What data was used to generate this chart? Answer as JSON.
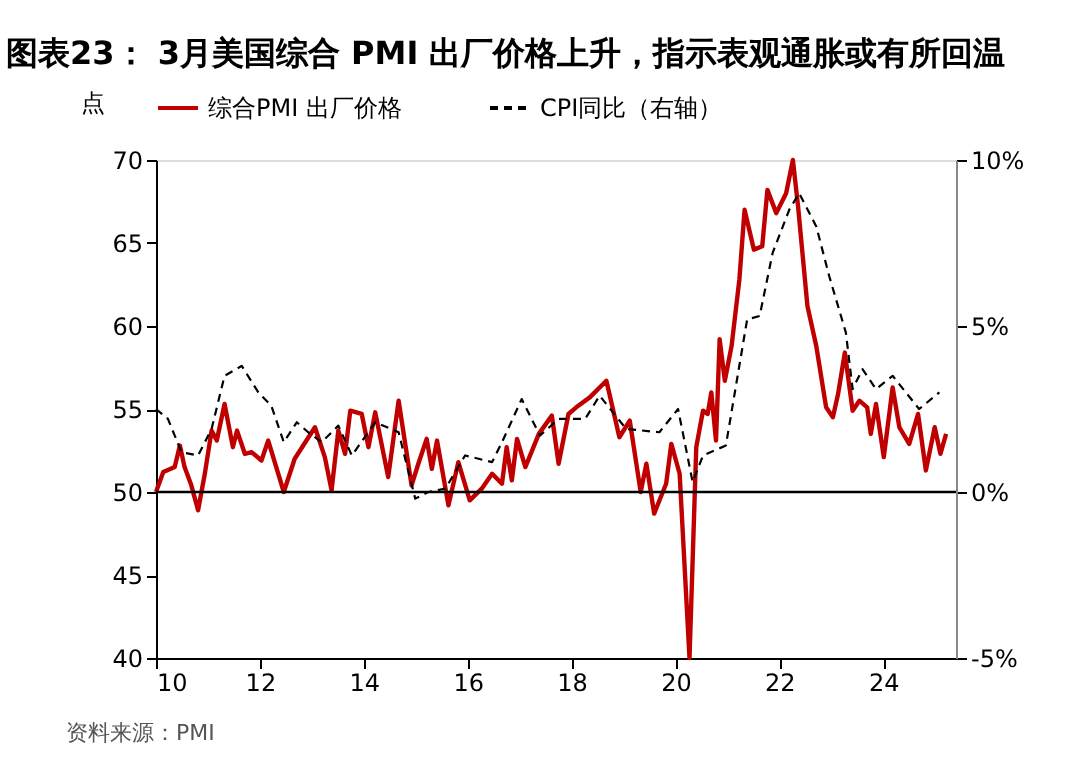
{
  "chart_data": {
    "type": "line",
    "title": "图表23： 3月美国综合 PMI 出厂价格上升，指示表观通胀或有所回温",
    "ylabel": "点",
    "xlim": [
      10,
      25.4
    ],
    "xticks": [
      10,
      12,
      14,
      16,
      18,
      20,
      22,
      24
    ],
    "ylim": [
      40,
      70
    ],
    "yticks": [
      40,
      45,
      50,
      55,
      60,
      65,
      70
    ],
    "y2lim": [
      -5,
      10
    ],
    "y2ticks": [
      {
        "value": -5,
        "label": "-5%"
      },
      {
        "value": 0,
        "label": "0%"
      },
      {
        "value": 5,
        "label": "5%"
      },
      {
        "value": 10,
        "label": "10%"
      }
    ],
    "grid": false,
    "legend": "top",
    "marker": "none",
    "ref_lines": [
      {
        "axis": "y",
        "value": 50,
        "color": "#000000"
      }
    ],
    "annotations": [
      "资料来源：PMI"
    ],
    "series": [
      {
        "name": "综合PMI 出厂价格",
        "color": "#c00000",
        "line_style": "solid",
        "x": [
          10.0,
          10.14,
          10.36,
          10.46,
          10.55,
          10.68,
          10.81,
          10.94,
          11.07,
          11.17,
          11.32,
          11.48,
          11.56,
          11.71,
          11.84,
          12.03,
          12.16,
          12.46,
          12.67,
          13.06,
          13.25,
          13.38,
          13.51,
          13.64,
          13.74,
          13.96,
          14.09,
          14.22,
          14.47,
          14.67,
          14.92,
          15.05,
          15.21,
          15.31,
          15.41,
          15.63,
          15.82,
          16.04,
          16.27,
          16.47,
          16.66,
          16.75,
          16.85,
          16.95,
          17.11,
          17.37,
          17.62,
          17.75,
          17.94,
          18.09,
          18.35,
          18.67,
          18.92,
          19.12,
          19.33,
          19.44,
          19.59,
          19.82,
          19.92,
          20.08,
          20.27,
          20.4,
          20.53,
          20.62,
          20.69,
          20.78,
          20.85,
          20.95,
          21.08,
          21.23,
          21.33,
          21.51,
          21.67,
          21.77,
          21.94,
          22.13,
          22.26,
          22.36,
          22.54,
          22.71,
          22.9,
          23.03,
          23.13,
          23.26,
          23.41,
          23.54,
          23.69,
          23.76,
          23.86,
          24.01,
          24.18,
          24.31,
          24.5,
          24.67,
          24.82,
          24.99,
          25.1,
          25.21
        ],
        "values": [
          50.0,
          51.2,
          51.5,
          52.8,
          51.5,
          50.4,
          48.9,
          51.1,
          53.7,
          53.1,
          55.3,
          52.7,
          53.7,
          52.3,
          52.4,
          51.9,
          53.1,
          50.0,
          52.0,
          53.9,
          52.1,
          50.1,
          53.7,
          52.3,
          54.9,
          54.7,
          52.7,
          54.8,
          50.9,
          55.5,
          50.4,
          51.7,
          53.2,
          51.4,
          53.1,
          49.2,
          51.8,
          49.5,
          50.2,
          51.1,
          50.5,
          52.7,
          50.7,
          53.2,
          51.5,
          53.5,
          54.6,
          51.7,
          54.7,
          55.1,
          55.7,
          56.7,
          53.3,
          54.3,
          50.0,
          51.7,
          48.7,
          50.5,
          52.9,
          51.1,
          40.0,
          52.7,
          54.9,
          54.7,
          56.0,
          53.1,
          59.2,
          56.7,
          58.8,
          62.8,
          67.0,
          64.6,
          64.8,
          68.2,
          66.8,
          68.0,
          70.0,
          67.2,
          61.2,
          58.8,
          55.1,
          54.5,
          55.9,
          58.4,
          54.9,
          55.5,
          55.1,
          53.5,
          55.3,
          52.1,
          56.3,
          53.9,
          52.9,
          54.7,
          51.3,
          53.9,
          52.3,
          53.5
        ]
      },
      {
        "name": "CPI同比（右轴）",
        "color": "#000000",
        "line_style": "dashed",
        "axis": "y2",
        "x": [
          10.0,
          10.23,
          10.49,
          10.81,
          11.07,
          11.32,
          11.65,
          11.97,
          12.22,
          12.46,
          12.71,
          12.93,
          13.19,
          13.51,
          13.77,
          14.22,
          14.67,
          14.99,
          15.24,
          15.57,
          15.95,
          16.21,
          16.47,
          16.66,
          17.04,
          17.39,
          17.75,
          18.26,
          18.54,
          19.05,
          19.69,
          20.05,
          20.33,
          20.53,
          20.97,
          21.38,
          21.62,
          21.87,
          22.19,
          22.38,
          22.71,
          22.96,
          23.28,
          23.41,
          23.6,
          23.86,
          24.18,
          24.69,
          25.08
        ],
        "values": [
          2.5,
          2.2,
          1.2,
          1.1,
          1.9,
          3.5,
          3.8,
          3.0,
          2.6,
          1.5,
          2.1,
          1.8,
          1.5,
          2.0,
          1.1,
          2.1,
          1.8,
          -0.2,
          0,
          0.1,
          1.1,
          1.0,
          0.9,
          1.5,
          2.8,
          1.7,
          2.2,
          2.2,
          2.9,
          1.9,
          1.8,
          2.5,
          0.3,
          1.1,
          1.4,
          5.2,
          5.3,
          7.2,
          8.5,
          9.0,
          8.0,
          6.5,
          4.8,
          3.1,
          3.7,
          3.1,
          3.5,
          2.5,
          3.0
        ]
      }
    ]
  }
}
